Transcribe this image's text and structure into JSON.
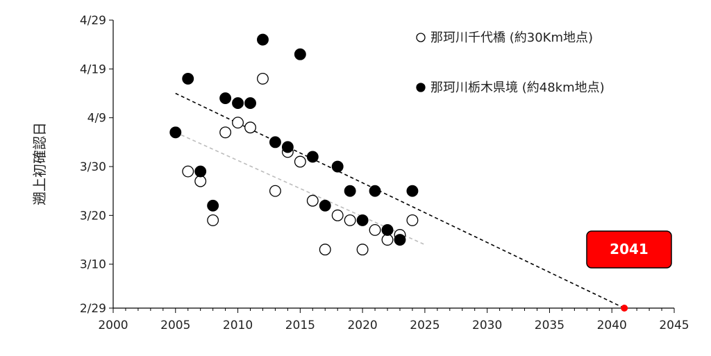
{
  "chart_data": {
    "type": "scatter",
    "ylabel": "遡上初確認日",
    "xlabel": "",
    "xlim": [
      2000,
      2045
    ],
    "x_ticks": [
      "2000",
      "2005",
      "2010",
      "2015",
      "2020",
      "2025",
      "2030",
      "2035",
      "2040",
      "2045"
    ],
    "ylim": [
      "2/29",
      "4/29"
    ],
    "y_ticks": [
      "2/29",
      "3/10",
      "3/20",
      "3/30",
      "4/9",
      "4/19",
      "4/29"
    ],
    "y_unit_note": "day-of-year values: 2/29=60 ... 4/29=120",
    "legend_position": "top-right",
    "series": [
      {
        "name": "那珂川千代橋 (約30Km地点)",
        "marker": "open-circle",
        "color": "#000000",
        "points": [
          {
            "x": 2006,
            "y": "3/29"
          },
          {
            "x": 2007,
            "y": "3/27"
          },
          {
            "x": 2008,
            "y": "3/19"
          },
          {
            "x": 2009,
            "y": "4/6"
          },
          {
            "x": 2010,
            "y": "4/8"
          },
          {
            "x": 2011,
            "y": "4/7"
          },
          {
            "x": 2012,
            "y": "4/17"
          },
          {
            "x": 2013,
            "y": "3/25"
          },
          {
            "x": 2014,
            "y": "4/2"
          },
          {
            "x": 2015,
            "y": "3/31"
          },
          {
            "x": 2016,
            "y": "3/23"
          },
          {
            "x": 2017,
            "y": "3/13"
          },
          {
            "x": 2018,
            "y": "3/20"
          },
          {
            "x": 2019,
            "y": "3/19"
          },
          {
            "x": 2020,
            "y": "3/13"
          },
          {
            "x": 2021,
            "y": "3/17"
          },
          {
            "x": 2022,
            "y": "3/15"
          },
          {
            "x": 2023,
            "y": "3/16"
          },
          {
            "x": 2024,
            "y": "3/19"
          }
        ],
        "trend": {
          "color": "#bdbdbd",
          "from": {
            "x": 2005,
            "y": "4/6"
          },
          "to": {
            "x": 2025,
            "y": "3/14"
          }
        }
      },
      {
        "name": "那珂川栃木県境 (約48km地点)",
        "marker": "filled-circle",
        "color": "#000000",
        "points": [
          {
            "x": 2005,
            "y": "4/6"
          },
          {
            "x": 2006,
            "y": "4/17"
          },
          {
            "x": 2007,
            "y": "3/29"
          },
          {
            "x": 2008,
            "y": "3/22"
          },
          {
            "x": 2009,
            "y": "4/13"
          },
          {
            "x": 2010,
            "y": "4/12"
          },
          {
            "x": 2011,
            "y": "4/12"
          },
          {
            "x": 2012,
            "y": "4/25"
          },
          {
            "x": 2013,
            "y": "4/4"
          },
          {
            "x": 2014,
            "y": "4/3"
          },
          {
            "x": 2015,
            "y": "4/22"
          },
          {
            "x": 2016,
            "y": "4/1"
          },
          {
            "x": 2017,
            "y": "3/22"
          },
          {
            "x": 2018,
            "y": "3/30"
          },
          {
            "x": 2019,
            "y": "3/25"
          },
          {
            "x": 2020,
            "y": "3/19"
          },
          {
            "x": 2021,
            "y": "3/25"
          },
          {
            "x": 2022,
            "y": "3/17"
          },
          {
            "x": 2023,
            "y": "3/15"
          },
          {
            "x": 2024,
            "y": "3/25"
          }
        ],
        "trend": {
          "color": "#000000",
          "from": {
            "x": 2005,
            "y": "4/14"
          },
          "to": {
            "x": 2041,
            "y": "2/29"
          }
        }
      }
    ],
    "annotation": {
      "label": "2041",
      "point": {
        "x": 2041,
        "y": "2/29"
      },
      "point_color": "#ff0000",
      "box_fill": "#ff0000",
      "box_stroke": "#000000",
      "text_color": "#ffffff"
    }
  }
}
